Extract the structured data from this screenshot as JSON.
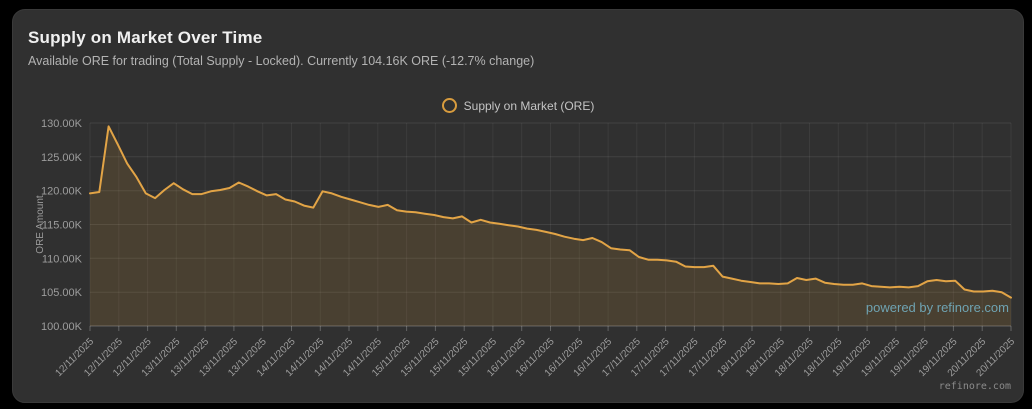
{
  "header": {
    "title": "Supply on Market Over Time",
    "subtitle": "Available ORE for trading (Total Supply - Locked). Currently 104.16K ORE (-12.7% change)"
  },
  "legend": {
    "label": "Supply on Market (ORE)"
  },
  "watermark": {
    "powered_by": "powered by refinore.com",
    "corner": "refinore.com"
  },
  "colors": {
    "accent_line": "#e2a446",
    "area_fill": "rgba(228,166,60,0.14)",
    "legend_ring": "#d89c3e",
    "watermark_teal": "#6fa3b2",
    "card_bg": "#303030",
    "axis_text": "#9d9d9d"
  },
  "chart_data": {
    "type": "area",
    "title": "Supply on Market Over Time",
    "ylabel": "ORE Amount",
    "xlabel": "",
    "grid": true,
    "legend_position": "top",
    "ylim": [
      100,
      130
    ],
    "y_ticks": [
      130,
      125,
      120,
      115,
      110,
      105,
      100
    ],
    "y_tick_labels": [
      "130.00K",
      "125.00K",
      "120.00K",
      "115.00K",
      "110.00K",
      "105.00K",
      "100.00K"
    ],
    "x_tick_labels": [
      "12/11/2025",
      "12/11/2025",
      "12/11/2025",
      "13/11/2025",
      "13/11/2025",
      "13/11/2025",
      "13/11/2025",
      "14/11/2025",
      "14/11/2025",
      "14/11/2025",
      "14/11/2025",
      "15/11/2025",
      "15/11/2025",
      "15/11/2025",
      "15/11/2025",
      "16/11/2025",
      "16/11/2025",
      "16/11/2025",
      "16/11/2025",
      "17/11/2025",
      "17/11/2025",
      "17/11/2025",
      "17/11/2025",
      "18/11/2025",
      "18/11/2025",
      "18/11/2025",
      "18/11/2025",
      "19/11/2025",
      "19/11/2025",
      "19/11/2025",
      "19/11/2025",
      "20/11/2025",
      "20/11/2025"
    ],
    "series": [
      {
        "name": "Supply on Market (ORE)",
        "unit": "K ORE",
        "current_value": "104.16K",
        "change": "-12.7%",
        "values": [
          119.6,
          119.8,
          129.5,
          126.8,
          124.0,
          122.0,
          119.6,
          118.9,
          120.1,
          121.1,
          120.2,
          119.5,
          119.5,
          119.9,
          120.1,
          120.4,
          121.2,
          120.6,
          119.9,
          119.3,
          119.5,
          118.7,
          118.4,
          117.8,
          117.5,
          119.9,
          119.6,
          119.1,
          118.7,
          118.3,
          117.9,
          117.6,
          117.9,
          117.1,
          116.9,
          116.8,
          116.6,
          116.4,
          116.1,
          115.9,
          116.2,
          115.3,
          115.7,
          115.3,
          115.1,
          114.9,
          114.7,
          114.4,
          114.2,
          113.9,
          113.6,
          113.2,
          112.9,
          112.7,
          113.0,
          112.4,
          111.5,
          111.3,
          111.2,
          110.2,
          109.8,
          109.8,
          109.7,
          109.5,
          108.8,
          108.7,
          108.7,
          108.9,
          107.3,
          107.0,
          106.7,
          106.5,
          106.3,
          106.3,
          106.2,
          106.3,
          107.1,
          106.8,
          107.0,
          106.4,
          106.2,
          106.1,
          106.1,
          106.3,
          105.9,
          105.8,
          105.7,
          105.8,
          105.7,
          105.9,
          106.6,
          106.8,
          106.6,
          106.7,
          105.4,
          105.1,
          105.1,
          105.2,
          105.0,
          104.2
        ]
      }
    ]
  }
}
